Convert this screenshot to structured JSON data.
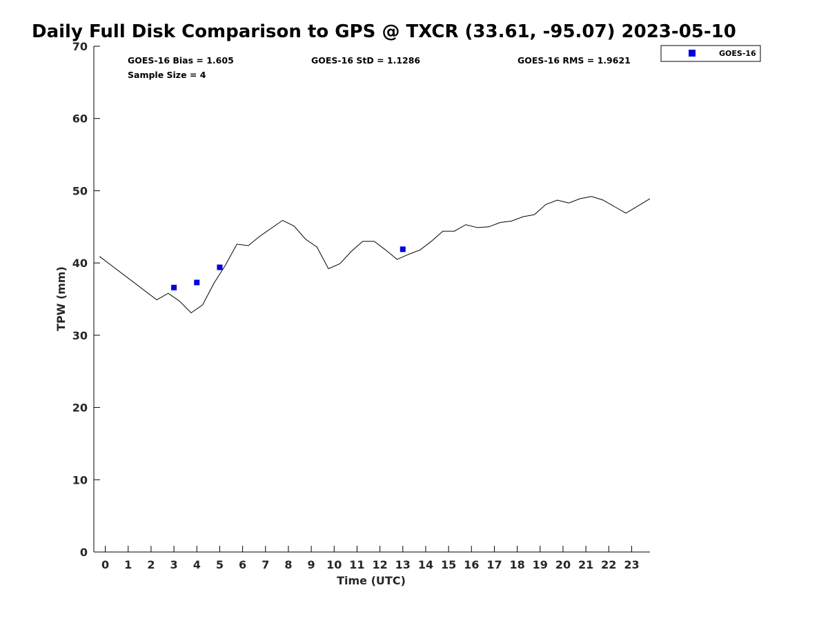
{
  "chart_data": {
    "type": "scatter",
    "title": "Daily Full Disk Comparison to GPS @ TXCR (33.61, -95.07) 2023-05-10",
    "xlabel": "Time (UTC)",
    "ylabel": "TPW (mm)",
    "xlim": [
      -0.5,
      23.8
    ],
    "ylim": [
      0,
      70
    ],
    "x_ticks": [
      0,
      1,
      2,
      3,
      4,
      5,
      6,
      7,
      8,
      9,
      10,
      11,
      12,
      13,
      14,
      15,
      16,
      17,
      18,
      19,
      20,
      21,
      22,
      23
    ],
    "x_tick_labels": [
      "0",
      "1",
      "2",
      "3",
      "4",
      "5",
      "6",
      "7",
      "8",
      "9",
      "10",
      "11",
      "12",
      "13",
      "14",
      "15",
      "16",
      "17",
      "18",
      "19",
      "20",
      "21",
      "22",
      "23"
    ],
    "y_ticks": [
      0,
      10,
      20,
      30,
      40,
      50,
      60,
      70
    ],
    "y_tick_labels": [
      "0",
      "10",
      "20",
      "30",
      "40",
      "50",
      "60",
      "70"
    ],
    "stats": {
      "bias": "GOES-16 Bias = 1.605",
      "std": "GOES-16 StD = 1.1286",
      "rms": "GOES-16 RMS = 1.9621",
      "sample_size": "Sample Size = 4"
    },
    "legend": {
      "position": "top-right",
      "entries": [
        "GOES-16"
      ]
    },
    "colors": {
      "goes": "#0000dd",
      "gps_line": "#000000"
    },
    "gps_line": {
      "x": [
        -0.25,
        2.25,
        2.75,
        3.25,
        3.75,
        4.25,
        4.75,
        5.25,
        5.75,
        6.25,
        6.75,
        7.75,
        8.25,
        8.75,
        9.25,
        9.75,
        10.25,
        10.75,
        11.25,
        11.75,
        12.25,
        12.75,
        13.25,
        13.75,
        14.25,
        14.75,
        15.25,
        15.75,
        16.25,
        16.75,
        17.25,
        17.75,
        18.25,
        18.75,
        19.25,
        19.75,
        20.25,
        20.75,
        21.25,
        21.75,
        22.25,
        22.75,
        23.8
      ],
      "y": [
        40.9,
        34.9,
        35.8,
        34.7,
        33.1,
        34.2,
        37.2,
        39.7,
        42.6,
        42.4,
        43.7,
        45.9,
        45.1,
        43.3,
        42.2,
        39.2,
        39.9,
        41.6,
        43.0,
        43.0,
        41.8,
        40.5,
        41.2,
        41.8,
        43.0,
        44.4,
        44.4,
        45.3,
        44.9,
        45.0,
        45.6,
        45.8,
        46.4,
        46.7,
        48.1,
        48.7,
        48.3,
        48.9,
        49.2,
        48.7,
        47.8,
        46.9,
        48.9
      ]
    },
    "series": [
      {
        "name": "GOES-16",
        "x": [
          3,
          4,
          5,
          13
        ],
        "y": [
          36.6,
          37.3,
          39.4,
          41.9
        ]
      }
    ]
  }
}
